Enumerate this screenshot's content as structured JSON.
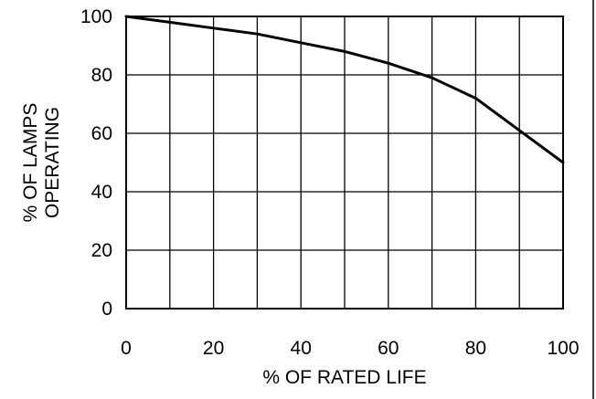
{
  "chart_data": {
    "type": "line",
    "title": "",
    "xlabel": "% OF RATED LIFE",
    "ylabel_lines": [
      "% OF LAMPS",
      "OPERATING"
    ],
    "xlim": [
      0,
      100
    ],
    "ylim": [
      0,
      100
    ],
    "x_ticks": [
      "0",
      "20",
      "40",
      "60",
      "80",
      "100"
    ],
    "y_ticks": [
      "0",
      "20",
      "40",
      "60",
      "80",
      "100"
    ],
    "grid": true,
    "series": [
      {
        "x": [
          0,
          10,
          20,
          30,
          40,
          50,
          60,
          70,
          80,
          90,
          100
        ],
        "y": [
          100,
          98,
          96,
          94,
          91,
          88,
          84,
          79,
          72,
          61,
          50
        ]
      }
    ]
  }
}
